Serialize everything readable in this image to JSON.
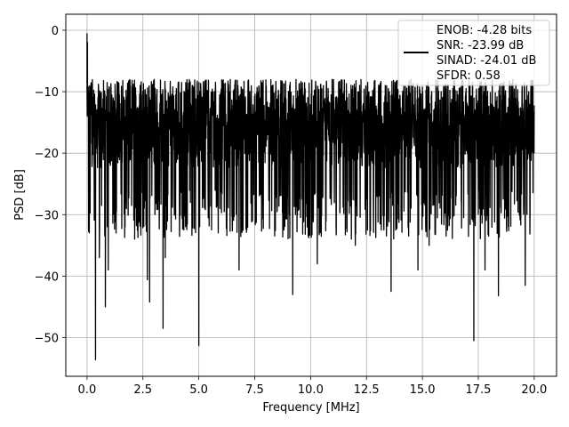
{
  "chart_data": {
    "type": "line",
    "title": "",
    "xlabel": "Frequency [MHz]",
    "ylabel": "PSD [dB]",
    "xlim": [
      -0.95,
      21.0
    ],
    "ylim": [
      -56.3,
      2.6
    ],
    "x_ticks": [
      0.0,
      2.5,
      5.0,
      7.5,
      10.0,
      12.5,
      15.0,
      17.5,
      20.0
    ],
    "x_tick_labels": [
      "0.0",
      "2.5",
      "5.0",
      "7.5",
      "10.0",
      "12.5",
      "15.0",
      "17.5",
      "20.0"
    ],
    "y_ticks": [
      0,
      -10,
      -20,
      -30,
      -40,
      -50
    ],
    "y_tick_labels": [
      "0",
      "−10",
      "−20",
      "−30",
      "−40",
      "−50"
    ],
    "grid": true,
    "legend": {
      "placement": "upper-right",
      "entries": [
        "ENOB: -4.28 bits",
        "SNR: -23.99 dB",
        "SINAD: -24.01 dB",
        "SFDR: 0.58"
      ]
    },
    "line_color": "#000000",
    "series": [
      {
        "x_start": 0.0,
        "x_end": 20.0,
        "y_typical_range": [
          -26,
          -8
        ],
        "peaks": [
          [
            0.0,
            -0.5
          ],
          [
            0.02,
            -2.0
          ]
        ],
        "dips": [
          [
            0.38,
            -53.6
          ],
          [
            0.55,
            -37.0
          ],
          [
            0.82,
            -45.0
          ],
          [
            0.95,
            -39.0
          ],
          [
            1.3,
            -33.0
          ],
          [
            1.7,
            -32.0
          ],
          [
            2.7,
            -40.6
          ],
          [
            2.8,
            -44.2
          ],
          [
            3.4,
            -48.5
          ],
          [
            3.5,
            -37.0
          ],
          [
            5.0,
            -51.3
          ],
          [
            6.8,
            -39.0
          ],
          [
            9.2,
            -43.0
          ],
          [
            10.3,
            -38.0
          ],
          [
            12.0,
            -35.0
          ],
          [
            13.6,
            -42.5
          ],
          [
            14.8,
            -39.0
          ],
          [
            15.3,
            -35.0
          ],
          [
            17.3,
            -50.5
          ],
          [
            17.8,
            -39.0
          ],
          [
            18.4,
            -43.2
          ],
          [
            19.6,
            -41.5
          ]
        ]
      }
    ]
  }
}
